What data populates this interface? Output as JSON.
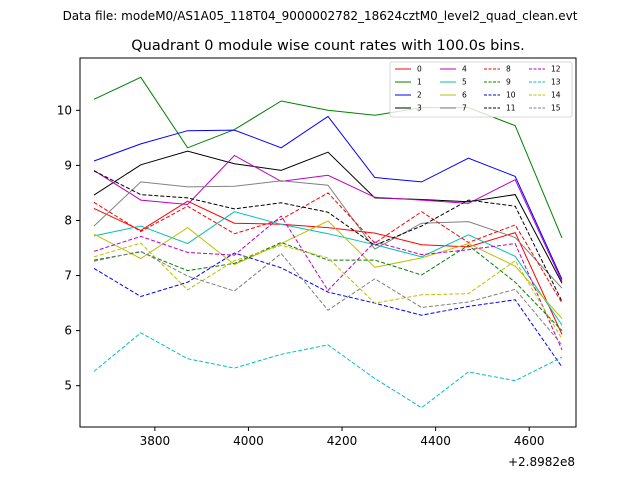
{
  "chart_data": {
    "type": "line",
    "file_label": "Data file: modeM0/AS1A05_118T04_9000002782_18624cztM0_level2_quad_clean.evt",
    "title": "Quadrant 0 module wise count rates with 100.0s bins.",
    "xlabel": "",
    "ylabel": "",
    "x_offset_label": "+2.8982e8",
    "xlim": [
      3640,
      4700
    ],
    "ylim": [
      4.25,
      10.95
    ],
    "xticks": [
      3800,
      4000,
      4200,
      4400,
      4600
    ],
    "xtick_labels": [
      "3800",
      "4000",
      "4200",
      "4400",
      "4600"
    ],
    "yticks": [
      5,
      6,
      7,
      8,
      9,
      10
    ],
    "ytick_labels": [
      "5",
      "6",
      "7",
      "8",
      "9",
      "10"
    ],
    "legend_position": "top-right",
    "x": [
      3670,
      3770,
      3870,
      3970,
      4070,
      4170,
      4270,
      4370,
      4470,
      4570,
      4670
    ],
    "series": [
      {
        "name": "0",
        "color": "#ff0000",
        "dashed": false,
        "values": [
          8.22,
          7.82,
          8.35,
          7.95,
          7.93,
          7.87,
          7.77,
          7.56,
          7.52,
          7.78,
          5.93
        ]
      },
      {
        "name": "1",
        "color": "#008000",
        "dashed": false,
        "values": [
          10.2,
          10.6,
          9.32,
          9.65,
          10.17,
          10.0,
          9.91,
          10.05,
          10.05,
          9.72,
          7.68
        ]
      },
      {
        "name": "2",
        "color": "#0000ff",
        "dashed": false,
        "values": [
          9.08,
          9.39,
          9.63,
          9.64,
          9.32,
          9.89,
          8.78,
          8.7,
          9.13,
          8.8,
          6.93
        ]
      },
      {
        "name": "3",
        "color": "#000000",
        "dashed": false,
        "values": [
          8.46,
          9.01,
          9.26,
          9.03,
          8.91,
          9.24,
          8.41,
          8.38,
          8.34,
          8.47,
          6.86
        ]
      },
      {
        "name": "4",
        "color": "#bf00bf",
        "dashed": false,
        "values": [
          8.91,
          8.37,
          8.29,
          9.18,
          8.71,
          8.82,
          8.42,
          8.37,
          8.31,
          8.74,
          6.89
        ]
      },
      {
        "name": "5",
        "color": "#00bfbf",
        "dashed": false,
        "values": [
          7.72,
          7.9,
          7.58,
          8.16,
          7.93,
          7.76,
          7.56,
          7.34,
          7.74,
          7.35,
          6.1
        ]
      },
      {
        "name": "6",
        "color": "#bfbf00",
        "dashed": false,
        "values": [
          7.75,
          7.31,
          7.87,
          7.2,
          7.58,
          7.99,
          7.15,
          7.32,
          7.58,
          7.17,
          6.22
        ]
      },
      {
        "name": "7",
        "color": "#808080",
        "dashed": false,
        "values": [
          7.9,
          8.7,
          8.61,
          8.62,
          8.72,
          8.64,
          7.48,
          7.95,
          7.98,
          7.69,
          6.77
        ]
      },
      {
        "name": "8",
        "color": "#ff0000",
        "dashed": true,
        "values": [
          8.33,
          7.8,
          8.26,
          7.76,
          8.02,
          8.5,
          7.59,
          8.16,
          7.6,
          7.92,
          6.5
        ]
      },
      {
        "name": "9",
        "color": "#008000",
        "dashed": true,
        "values": [
          7.28,
          7.43,
          7.09,
          7.22,
          7.6,
          7.28,
          7.28,
          7.01,
          7.55,
          6.88,
          6.0
        ]
      },
      {
        "name": "10",
        "color": "#0000ff",
        "dashed": true,
        "values": [
          7.13,
          6.62,
          6.88,
          7.41,
          7.14,
          6.7,
          6.5,
          6.28,
          6.44,
          6.56,
          5.34
        ]
      },
      {
        "name": "11",
        "color": "#000000",
        "dashed": true,
        "values": [
          8.9,
          8.47,
          8.41,
          8.21,
          8.32,
          8.15,
          7.55,
          7.9,
          8.37,
          8.26,
          6.53
        ]
      },
      {
        "name": "12",
        "color": "#bf00bf",
        "dashed": true,
        "values": [
          7.44,
          7.71,
          7.42,
          7.37,
          8.08,
          6.73,
          7.61,
          7.38,
          7.47,
          7.58,
          5.65
        ]
      },
      {
        "name": "13",
        "color": "#00bfbf",
        "dashed": true,
        "values": [
          5.26,
          5.96,
          5.49,
          5.32,
          5.57,
          5.74,
          5.13,
          4.6,
          5.25,
          5.09,
          5.52
        ]
      },
      {
        "name": "14",
        "color": "#bfbf00",
        "dashed": true,
        "values": [
          7.34,
          7.59,
          6.74,
          7.27,
          7.55,
          7.32,
          6.5,
          6.65,
          6.67,
          7.27,
          5.85
        ]
      },
      {
        "name": "15",
        "color": "#808080",
        "dashed": true,
        "values": [
          7.26,
          7.44,
          6.99,
          6.72,
          7.4,
          6.37,
          6.94,
          6.42,
          6.52,
          6.75,
          5.74
        ]
      }
    ]
  }
}
